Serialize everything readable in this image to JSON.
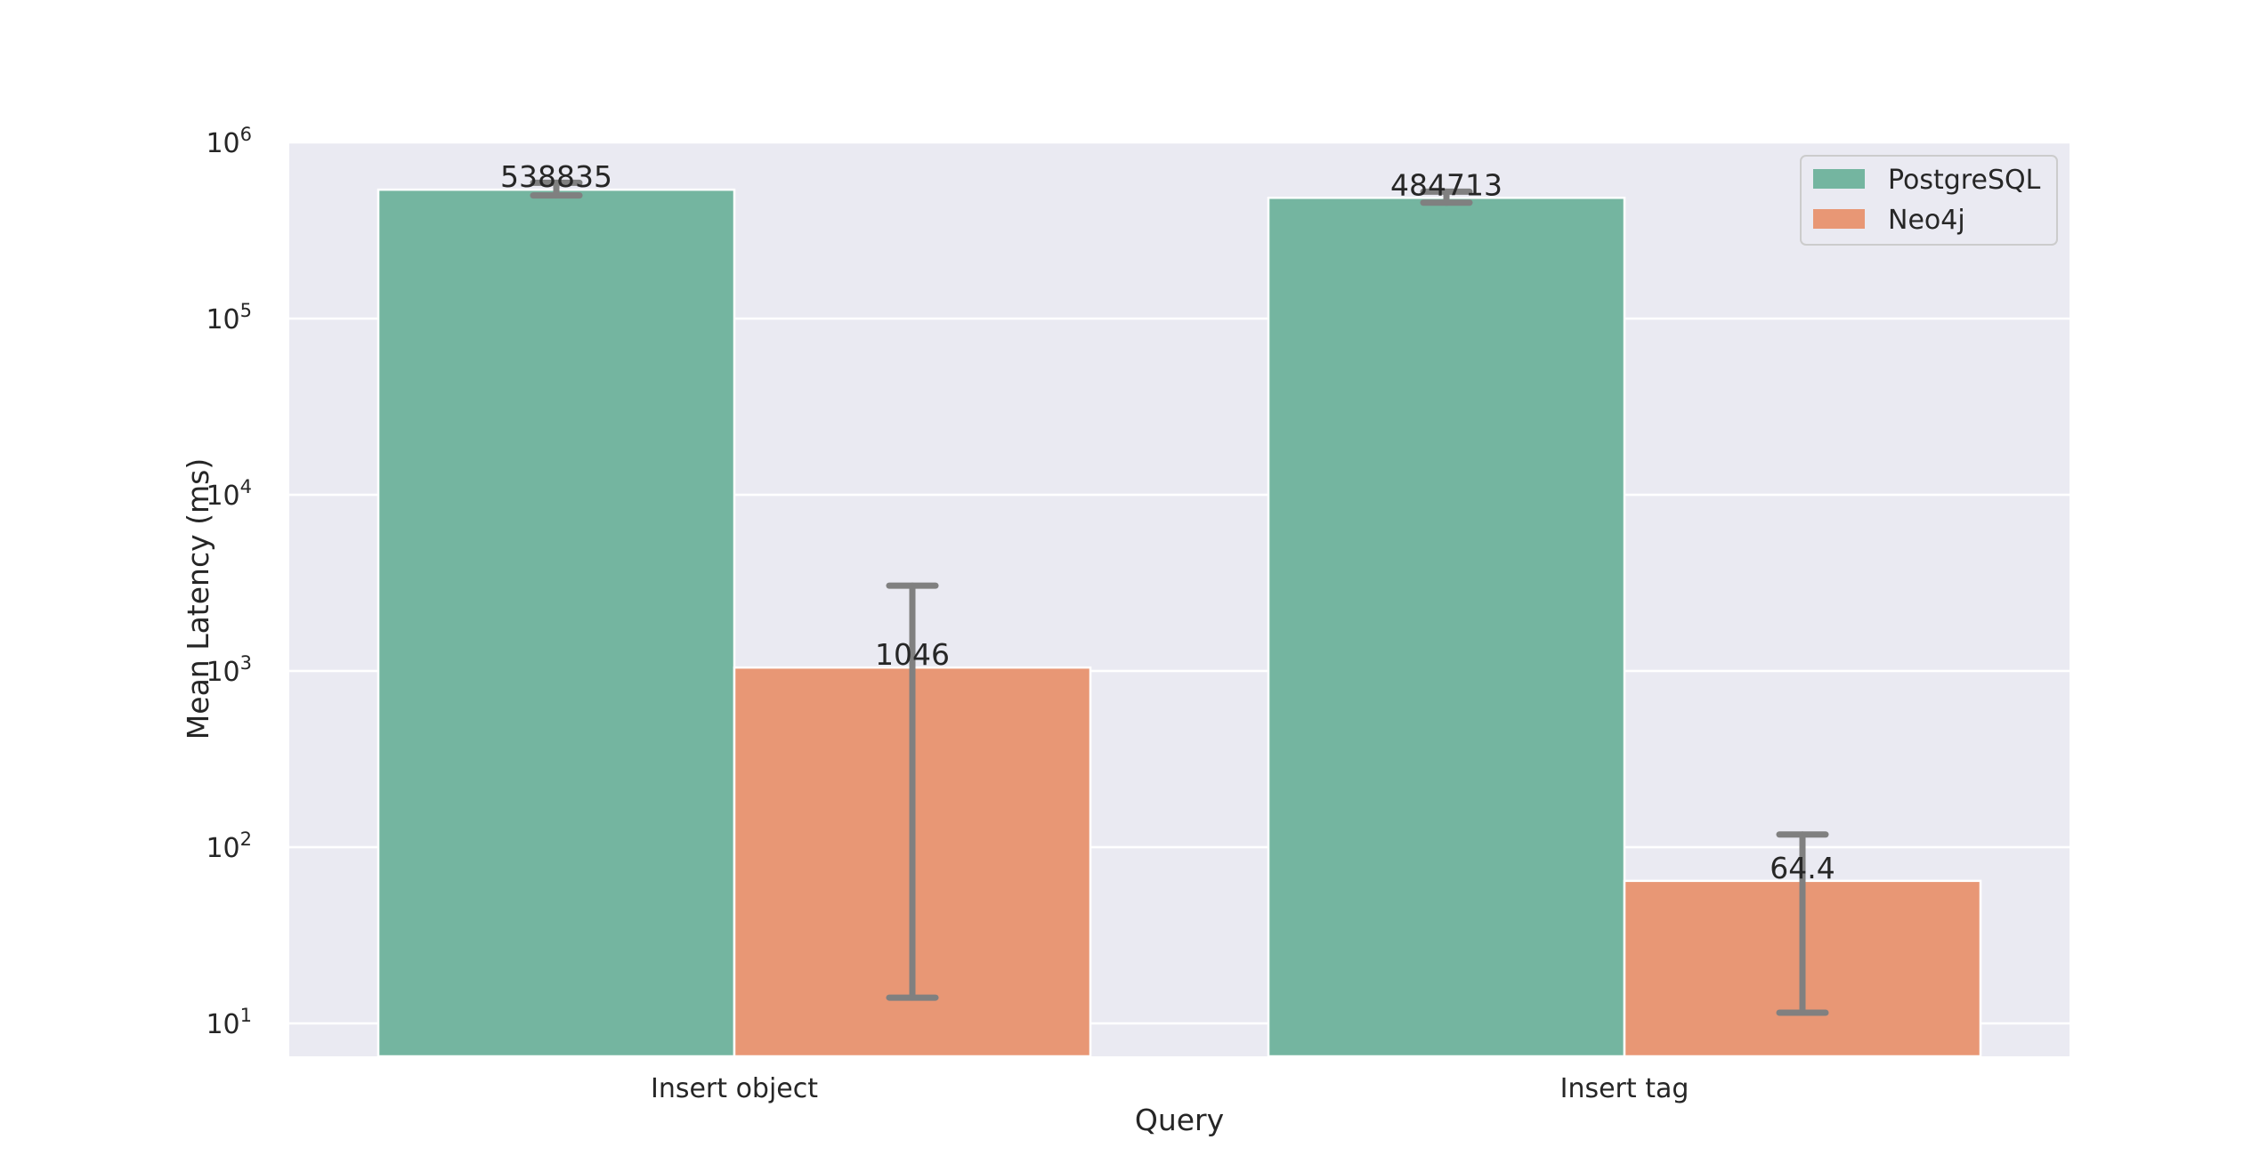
{
  "chart_data": {
    "type": "bar",
    "title": "",
    "xlabel": "Query",
    "ylabel": "Mean Latency (ms)",
    "yscale": "log",
    "ylim": [
      6.5,
      1000000
    ],
    "ytick_base": "10",
    "yticks_exponents": [
      1,
      2,
      3,
      4,
      5,
      6
    ],
    "grid": true,
    "legend_position": "top-right",
    "categories": [
      "Insert object",
      "Insert tag"
    ],
    "series": [
      {
        "name": "PostgreSQL",
        "color": "#74b5a0",
        "values": [
          538835,
          484713
        ],
        "value_labels": [
          "538835",
          "484713"
        ],
        "error_low": [
          500000,
          455000
        ],
        "error_high": [
          590000,
          525000
        ]
      },
      {
        "name": "Neo4j",
        "color": "#e89775",
        "values": [
          1046,
          64.4
        ],
        "value_labels": [
          "1046",
          "64.4"
        ],
        "error_low": [
          14,
          11.5
        ],
        "error_high": [
          3050,
          118
        ]
      }
    ],
    "colors": {
      "background": "#eaeaf2",
      "grid": "#ffffff",
      "error_bar": "#808080",
      "text": "#262626"
    }
  }
}
